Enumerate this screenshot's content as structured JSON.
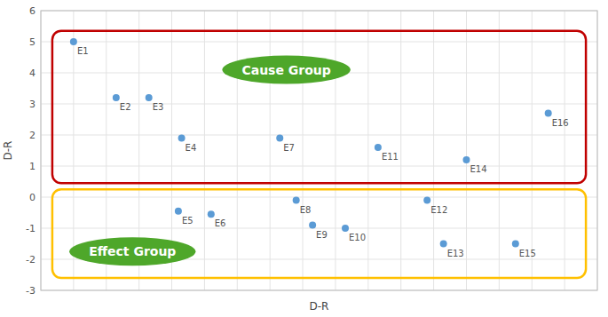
{
  "chart_data": {
    "type": "scatter",
    "xlabel": "D-R",
    "ylabel": "D-R",
    "xlim": [
      0,
      17
    ],
    "ylim": [
      -3,
      6
    ],
    "xticks": [
      0,
      1,
      2,
      3,
      4,
      5,
      6,
      7,
      8,
      9,
      10,
      11,
      12,
      13,
      14,
      15,
      16,
      17
    ],
    "yticks": [
      -3,
      -2,
      -1,
      0,
      1,
      2,
      3,
      4,
      5,
      6
    ],
    "tick_labels": "y",
    "grid": true,
    "color": "#5b9bd5",
    "x": [
      1.0,
      2.3,
      3.3,
      4.3,
      7.3,
      10.3,
      13.0,
      15.5,
      4.2,
      5.2,
      7.8,
      8.3,
      9.3,
      11.8,
      12.3,
      14.5
    ],
    "values": [
      5.0,
      3.2,
      3.2,
      1.9,
      1.9,
      1.6,
      1.2,
      2.7,
      -0.45,
      -0.55,
      -0.1,
      -0.9,
      -1.0,
      -0.1,
      -1.5,
      -1.5
    ],
    "labels": [
      "E1",
      "E2",
      "E3",
      "E4",
      "E7",
      "E11",
      "E14",
      "E16",
      "E5",
      "E6",
      "E8",
      "E9",
      "E10",
      "E12",
      "E13",
      "E15"
    ],
    "regions": [
      {
        "x0": 0.35,
        "y0": 0.45,
        "width": 16.3,
        "height": 4.9,
        "color": "#c00000"
      },
      {
        "x0": 0.35,
        "y0": -2.6,
        "width": 16.3,
        "height": 2.85,
        "color": "#ffc000"
      }
    ],
    "annotations": [
      {
        "text": "Cause Group",
        "x": 7.5,
        "y": 4.1,
        "color": "#4ea72a"
      },
      {
        "text": "Effect Group",
        "x": 2.8,
        "y": -1.75,
        "color": "#4ea72a"
      }
    ]
  }
}
